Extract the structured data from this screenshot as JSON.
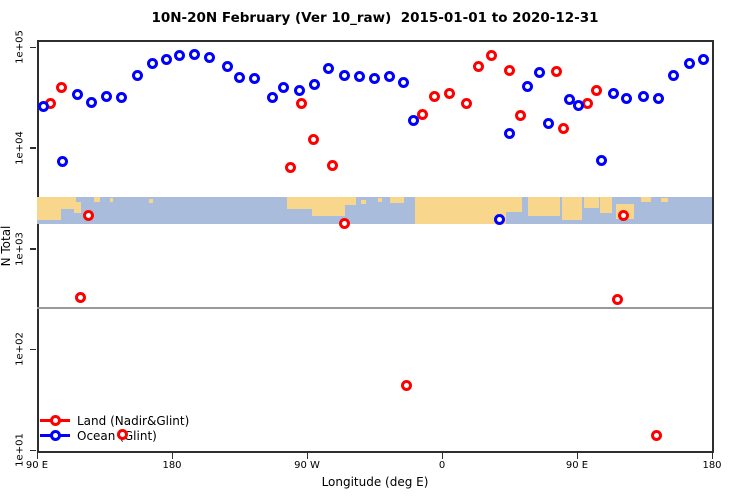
{
  "title": "10N-20N February (Ver 10_raw)  2015-01-01 to 2020-12-31",
  "chart_data": {
    "type": "scatter",
    "title": "10N-20N February (Ver 10_raw)  2015-01-01 to 2020-12-31",
    "xlabel": "Longitude (deg E)",
    "ylabel": "N Total",
    "x_axis": {
      "note": "longitude wraps eastward starting at 90E, through dateline and Greenwich, back to 180",
      "range_deg": [
        90,
        540
      ],
      "ticks": [
        {
          "deg": 90,
          "label": "90 E"
        },
        {
          "deg": 180,
          "label": "180"
        },
        {
          "deg": 270,
          "label": "90 W"
        },
        {
          "deg": 360,
          "label": "0"
        },
        {
          "deg": 450,
          "label": "90 E"
        },
        {
          "deg": 540,
          "label": "180"
        }
      ]
    },
    "y_axis": {
      "scale": "log10",
      "range": [
        10,
        100000
      ],
      "ticks": [
        {
          "value": 10,
          "label": "1e+01"
        },
        {
          "value": 100,
          "label": "1e+02"
        },
        {
          "value": 1000,
          "label": "1e+03"
        },
        {
          "value": 10000,
          "label": "1e+04"
        },
        {
          "value": 100000,
          "label": "1e+05"
        }
      ],
      "grid": false
    },
    "reference_line": {
      "value": 260,
      "color": "#999999"
    },
    "map_band": {
      "value_top": 3250,
      "value_bottom": 1750,
      "ocean_color": "#a9bcdb",
      "land_color": "#f8d68c",
      "land_patches": [
        [
          0,
          3.5,
          0,
          85
        ],
        [
          3.0,
          2.8,
          0,
          45
        ],
        [
          5.5,
          1.0,
          20,
          40
        ],
        [
          8.5,
          0.8,
          0,
          18
        ],
        [
          10.8,
          0.5,
          5,
          15
        ],
        [
          16.6,
          0.6,
          8,
          14
        ],
        [
          37.0,
          4.0,
          0,
          45
        ],
        [
          40.8,
          4.8,
          0,
          72
        ],
        [
          45.4,
          1.8,
          0,
          28
        ],
        [
          48.0,
          0.7,
          10,
          15
        ],
        [
          50.5,
          0.6,
          5,
          12
        ],
        [
          52.3,
          2.0,
          0,
          22
        ],
        [
          56.0,
          13.5,
          0,
          100
        ],
        [
          69.5,
          2.4,
          0,
          55
        ],
        [
          72.7,
          4.8,
          0,
          70
        ],
        [
          77.8,
          3.0,
          0,
          85
        ],
        [
          81.0,
          2.2,
          0,
          40
        ],
        [
          83.4,
          1.8,
          0,
          60
        ],
        [
          85.8,
          2.6,
          25,
          55
        ],
        [
          89.5,
          1.5,
          0,
          20
        ],
        [
          92.5,
          1.0,
          5,
          12
        ]
      ]
    },
    "series": [
      {
        "name": "Land (Nadir&Glint)",
        "color": "#ff0000",
        "points": [
          [
            98.7,
            27800
          ],
          [
            106,
            39200
          ],
          [
            118.7,
            323
          ],
          [
            124,
            2150
          ],
          [
            146.7,
            14.1
          ],
          [
            259.3,
            6440
          ],
          [
            266,
            27800
          ],
          [
            274,
            12200
          ],
          [
            287.3,
            6590
          ],
          [
            294.7,
            1790
          ],
          [
            336,
            44
          ],
          [
            347.3,
            21600
          ],
          [
            355.3,
            31900
          ],
          [
            364.7,
            34900
          ],
          [
            376,
            27800
          ],
          [
            384,
            64700
          ],
          [
            393.3,
            83200
          ],
          [
            404.7,
            59100
          ],
          [
            412,
            21100
          ],
          [
            436,
            56500
          ],
          [
            441.3,
            15400
          ],
          [
            456.7,
            27800
          ],
          [
            463.3,
            36600
          ],
          [
            476.7,
            315
          ],
          [
            480.7,
            2150
          ],
          [
            503.3,
            13.8
          ]
        ]
      },
      {
        "name": "Ocean (Glint)",
        "color": "#0000ff",
        "points": [
          [
            94,
            25400
          ],
          [
            107.3,
            7380
          ],
          [
            116.7,
            34100
          ],
          [
            126,
            28400
          ],
          [
            136,
            31900
          ],
          [
            146,
            31200
          ],
          [
            156.7,
            52700
          ],
          [
            167.3,
            69300
          ],
          [
            176,
            74300
          ],
          [
            185.3,
            83200
          ],
          [
            195.3,
            85100
          ],
          [
            204.7,
            77800
          ],
          [
            217.3,
            64700
          ],
          [
            225.3,
            50300
          ],
          [
            234.7,
            49200
          ],
          [
            246.7,
            31200
          ],
          [
            254,
            39200
          ],
          [
            264.7,
            36600
          ],
          [
            274.7,
            42000
          ],
          [
            284,
            60500
          ],
          [
            295.3,
            52700
          ],
          [
            305.3,
            51500
          ],
          [
            315.3,
            49200
          ],
          [
            324.7,
            51500
          ],
          [
            334,
            44900
          ],
          [
            341.3,
            18800
          ],
          [
            398,
            1960
          ],
          [
            404.7,
            13700
          ],
          [
            416.7,
            41000
          ],
          [
            424.7,
            55200
          ],
          [
            431.3,
            17600
          ],
          [
            444.7,
            29800
          ],
          [
            451.3,
            26500
          ],
          [
            466,
            7550
          ],
          [
            474,
            34900
          ],
          [
            483.3,
            30500
          ],
          [
            494,
            32600
          ],
          [
            504,
            30500
          ],
          [
            514,
            52700
          ],
          [
            524.7,
            69300
          ],
          [
            534,
            76000
          ]
        ]
      }
    ],
    "legend": {
      "position": "bottom-left",
      "entries": [
        "Land (Nadir&Glint)",
        "Ocean (Glint)"
      ]
    }
  }
}
